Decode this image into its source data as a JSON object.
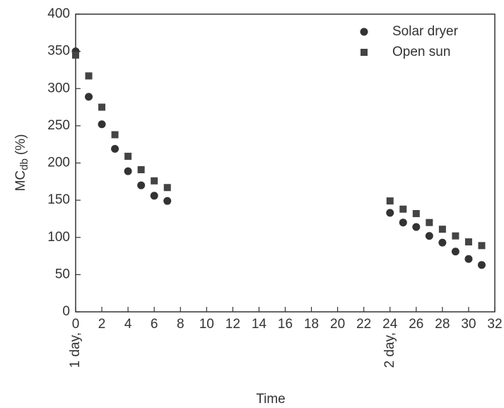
{
  "chart_data": {
    "type": "scatter",
    "x_label": "Time",
    "y_label": {
      "main": "MC",
      "subscript": "db",
      "unit": "(%)"
    },
    "x": [
      0,
      1,
      2,
      3,
      4,
      5,
      6,
      7,
      24,
      25,
      26,
      27,
      28,
      29,
      30,
      31
    ],
    "series": [
      {
        "name": "Solar dryer",
        "marker": "circle",
        "color": "#333333",
        "values": [
          350,
          289,
          252,
          219,
          189,
          170,
          156,
          149,
          133,
          120,
          114,
          102,
          93,
          81,
          71,
          63
        ]
      },
      {
        "name": "Open sun",
        "marker": "square",
        "color": "#444444",
        "values": [
          345,
          317,
          275,
          238,
          209,
          191,
          176,
          167,
          149,
          138,
          132,
          120,
          111,
          102,
          94,
          89
        ]
      }
    ],
    "xlim": [
      0,
      32
    ],
    "xticks": [
      0,
      2,
      4,
      6,
      8,
      10,
      12,
      14,
      16,
      18,
      20,
      22,
      24,
      26,
      28,
      30,
      32
    ],
    "ylim": [
      0,
      400
    ],
    "yticks": [
      0,
      50,
      100,
      150,
      200,
      250,
      300,
      350,
      400
    ],
    "annotations": [
      {
        "x": 0,
        "text": "1 day,"
      },
      {
        "x": 24,
        "text": "2 day,"
      }
    ],
    "legend": "upper right",
    "grid": false
  }
}
